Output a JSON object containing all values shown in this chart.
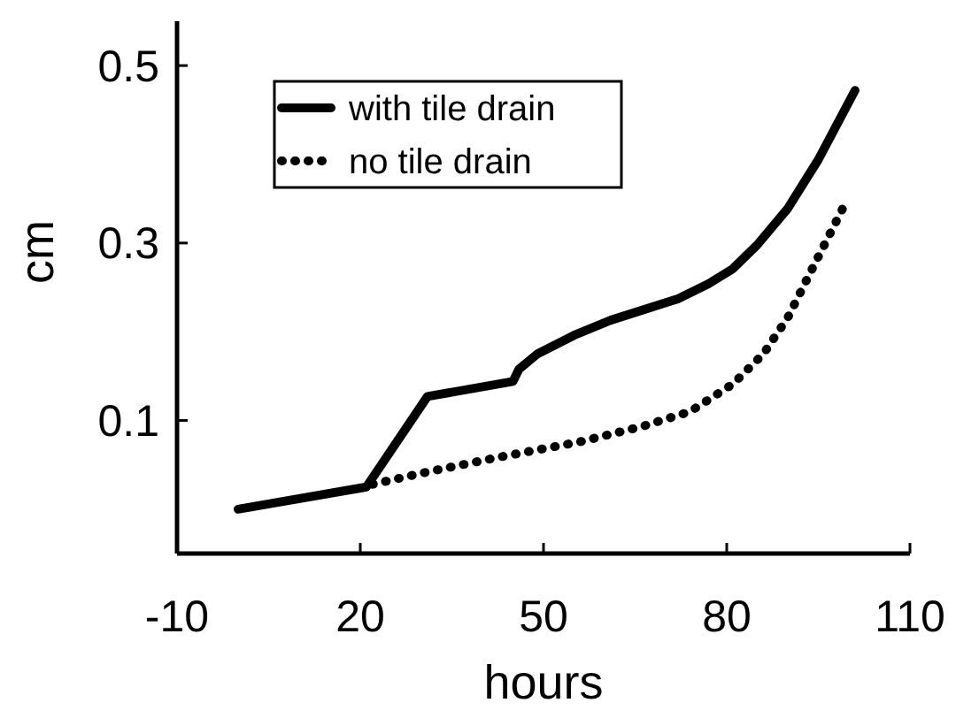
{
  "chart_data": {
    "type": "line",
    "xlabel": "hours",
    "ylabel": "cm",
    "xlim": [
      -10,
      110
    ],
    "xticks": [
      -10,
      20,
      50,
      80,
      110
    ],
    "ylim": [
      -0.05,
      0.55
    ],
    "yticks": [
      0.1,
      0.3,
      0.5
    ],
    "grid": false,
    "legend": "top left",
    "marker": "none",
    "series": [
      {
        "name": "with tile drain",
        "color": "#000000",
        "line_style": "solid",
        "x": [
          0,
          21,
          31,
          45,
          46,
          49,
          55,
          61,
          72,
          77,
          81,
          85,
          90,
          95,
          101
        ],
        "values": [
          0.0,
          0.025,
          0.127,
          0.144,
          0.158,
          0.175,
          0.196,
          0.213,
          0.237,
          0.254,
          0.271,
          0.298,
          0.339,
          0.394,
          0.472
        ]
      },
      {
        "name": "no tile drain",
        "color": "#000000",
        "line_style": "dotted",
        "x": [
          22,
          31,
          43,
          56,
          66,
          74,
          81,
          86,
          90,
          94,
          99
        ],
        "values": [
          0.028,
          0.042,
          0.059,
          0.076,
          0.093,
          0.11,
          0.141,
          0.175,
          0.216,
          0.271,
          0.339
        ]
      }
    ]
  }
}
